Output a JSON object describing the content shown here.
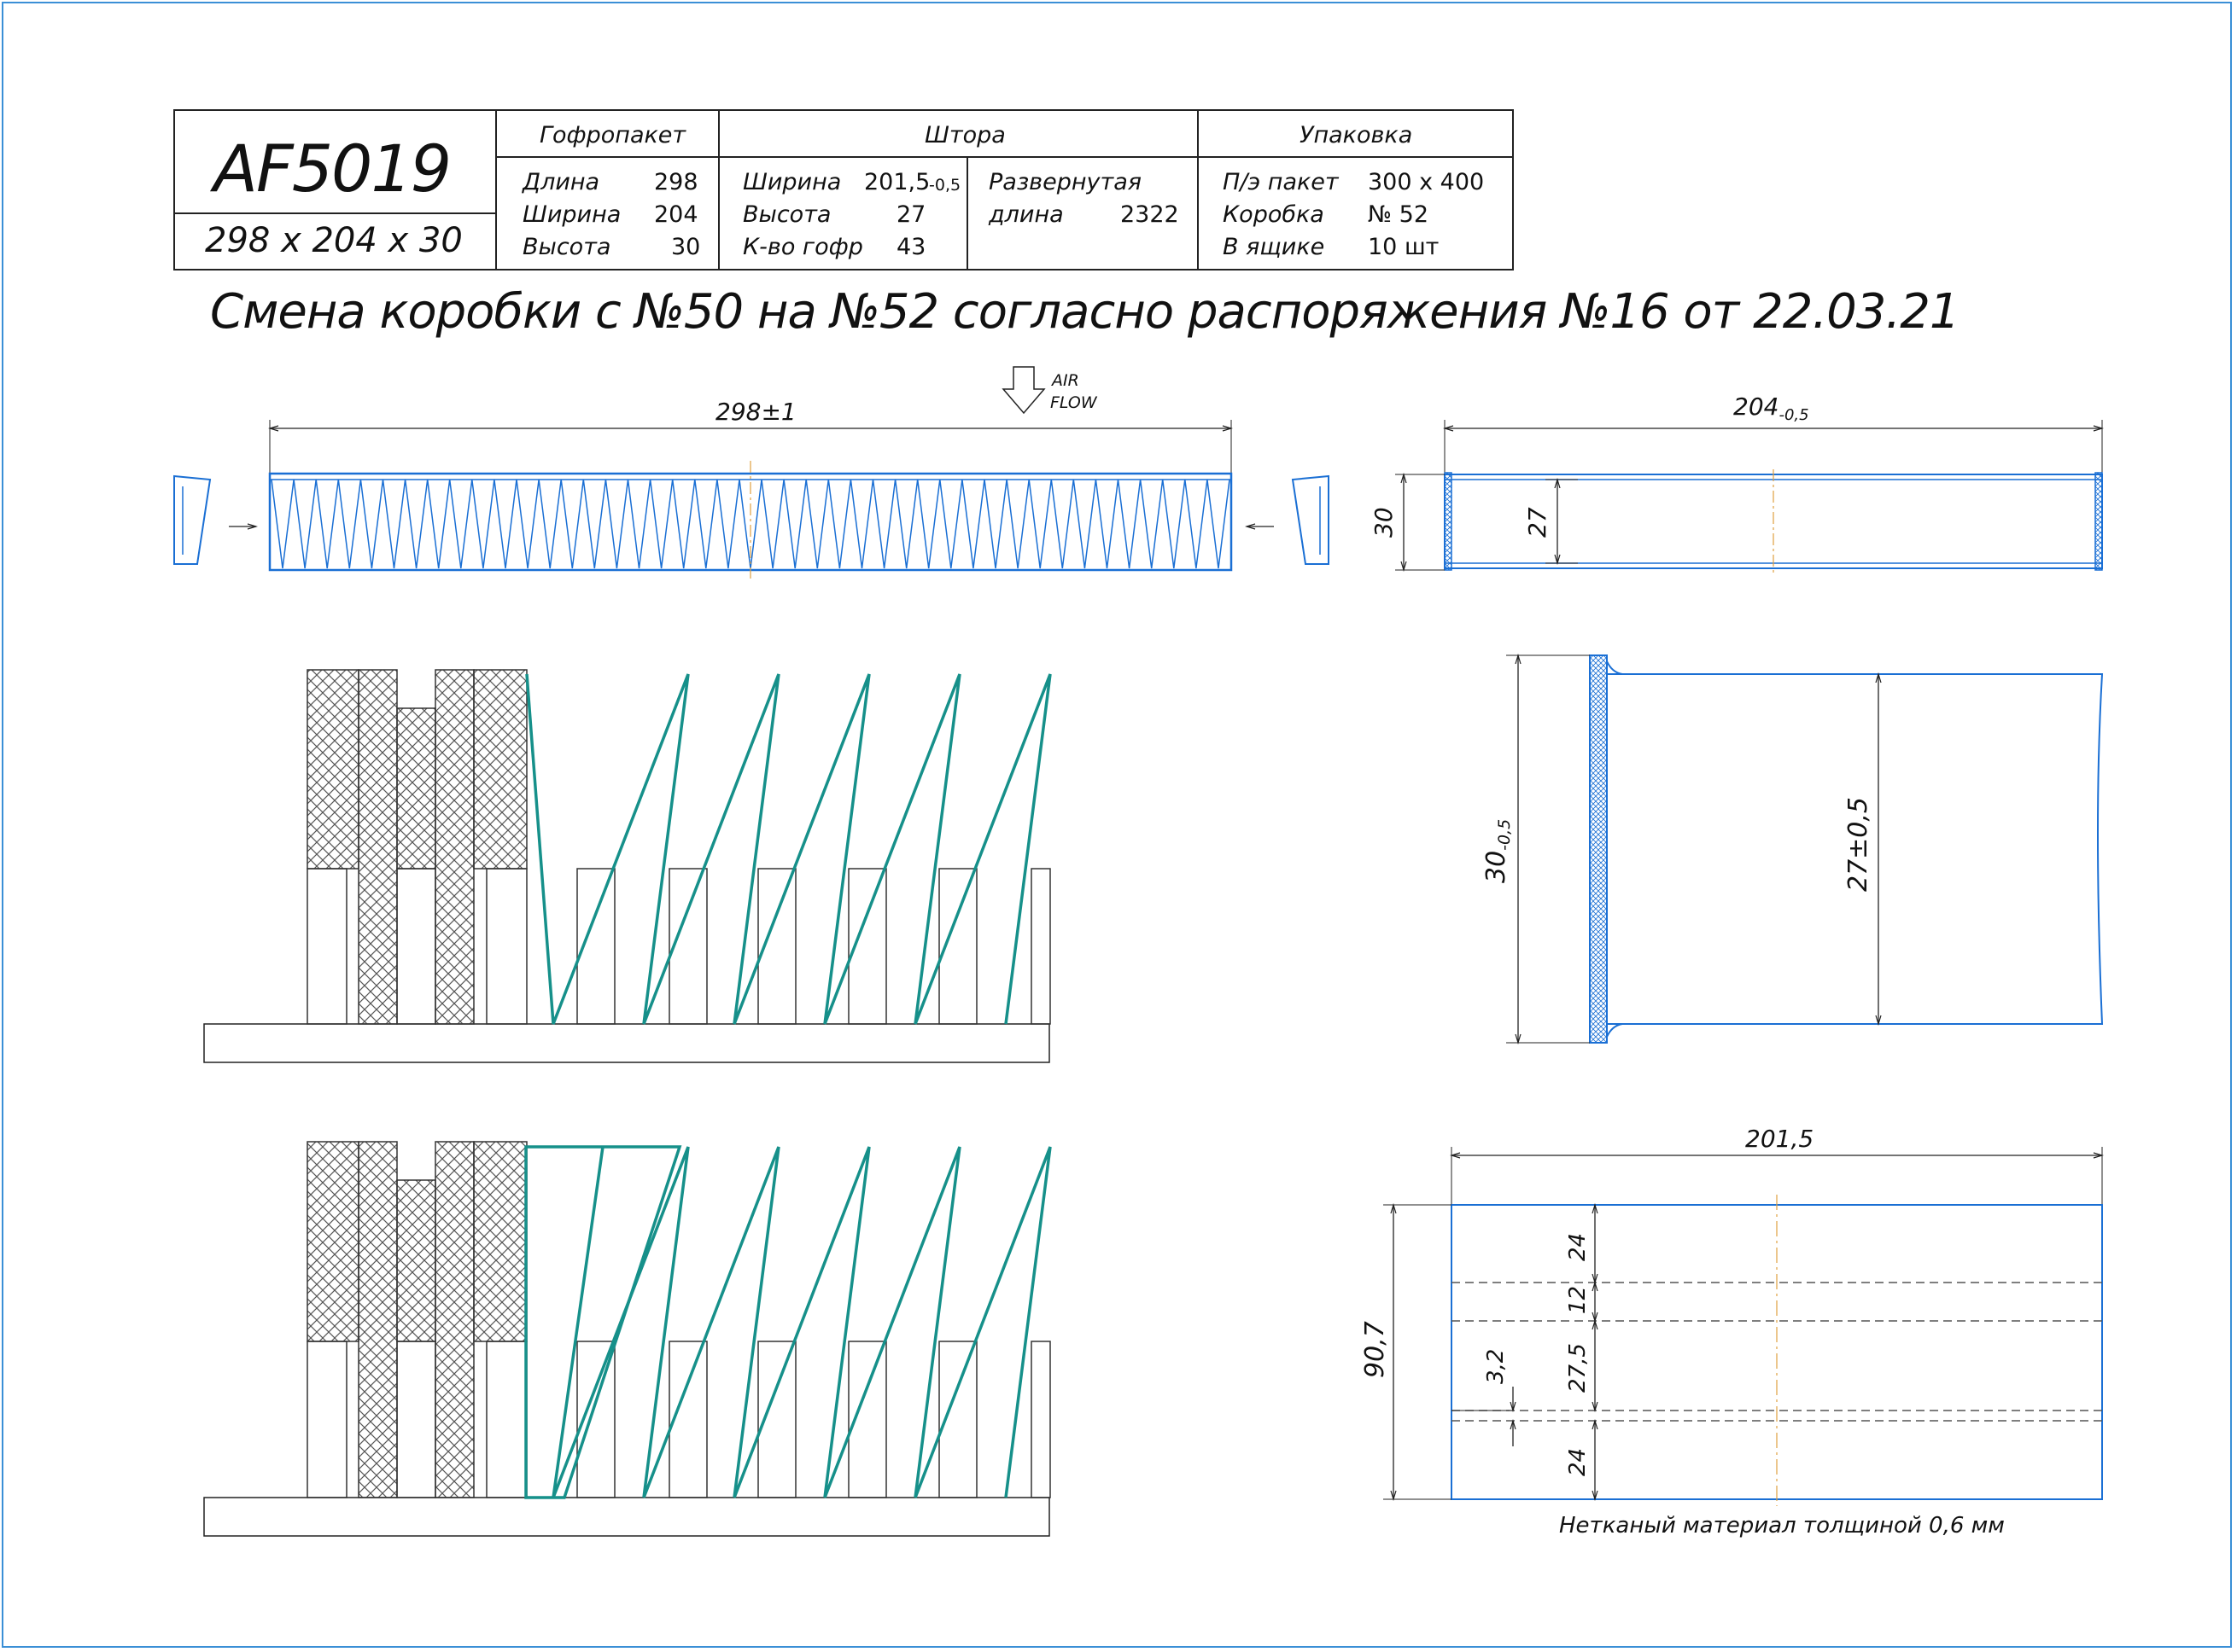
{
  "title_block": {
    "part_number": "AF5019",
    "dimensions": "298 x 204 x 30",
    "filter_pack": {
      "header": "Гофропакет",
      "rows": [
        {
          "label": "Длина",
          "value": "298"
        },
        {
          "label": "Ширина",
          "value": "204"
        },
        {
          "label": "Высота",
          "value": "30"
        }
      ]
    },
    "curtain": {
      "header": "Штора",
      "rows": [
        {
          "label": "Ширина",
          "value": "201,5",
          "tol": "-0,5"
        },
        {
          "label": "Высота",
          "value": "27"
        },
        {
          "label": "К-во гофр",
          "value": "43"
        }
      ],
      "unfolded_label_1": "Развернутая",
      "unfolded_label_2": "длина",
      "unfolded_value": "2322"
    },
    "packaging": {
      "header": "Упаковка",
      "rows": [
        {
          "label": "П/э пакет",
          "value": "300 х 400"
        },
        {
          "label": "Коробка",
          "value": "№ 52"
        },
        {
          "label": "В ящике",
          "value": "10 шт"
        }
      ]
    }
  },
  "notice": "Смена коробки с №50 на №52 согласно распоряжения №16 от 22.03.21",
  "airflow": {
    "line1": "AIR",
    "line2": "FLOW"
  },
  "dims": {
    "length": "298±1",
    "width_base": "204",
    "width_tol": "-0,5",
    "side_height": "30",
    "side_inner": "27",
    "detail_height_base": "30",
    "detail_height_tol": "-0,5",
    "detail_inner": "27±0,5",
    "curtain_width": "201,5",
    "curtain_height": "90,7",
    "seg1": "24",
    "seg2": "12",
    "seg3": "27,5",
    "seg4": "24",
    "gap": "3,2"
  },
  "material_note": "Нетканый материал толщиной 0,6 мм",
  "colors": {
    "outline_blue": "#1a6fd4",
    "pleat_teal": "#16908a",
    "center_orange": "#e0a040",
    "frame_blue": "#3a8fd6"
  }
}
